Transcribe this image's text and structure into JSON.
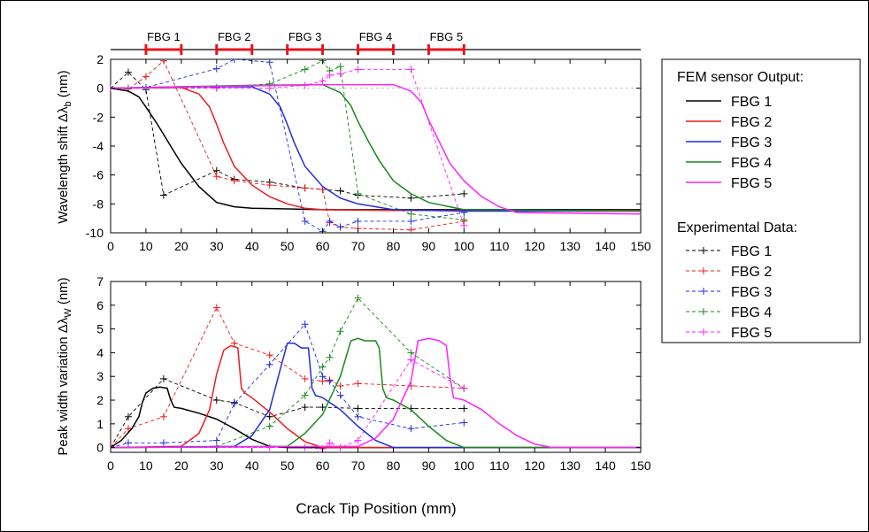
{
  "labels": {
    "top_ylabel": "Wavelength shift Δλ",
    "top_ylabel_sub": "b",
    "top_ylabel_unit": " (nm)",
    "bottom_ylabel": "Peak width variation Δλ",
    "bottom_ylabel_sub": "W",
    "bottom_ylabel_unit": " (nm)",
    "xlabel": "Crack Tip Position (mm)"
  },
  "sensor_bar": [
    {
      "label": "FBG 1",
      "from": 10,
      "to": 20
    },
    {
      "label": "FBG 2",
      "from": 30,
      "to": 40
    },
    {
      "label": "FBG 3",
      "from": 50,
      "to": 60
    },
    {
      "label": "FBG 4",
      "from": 70,
      "to": 80
    },
    {
      "label": "FBG 5",
      "from": 90,
      "to": 100
    }
  ],
  "legend": {
    "fem_title": "FEM sensor Output:",
    "exp_title": "Experimental Data:",
    "fem_items": [
      "FBG 1",
      "FBG 2",
      "FBG 3",
      "FBG 4",
      "FBG 5"
    ],
    "exp_items": [
      "FBG 1",
      "FBG 2",
      "FBG 3",
      "FBG 4",
      "FBG 5"
    ]
  },
  "colors": {
    "FBG 1": "#000000",
    "FBG 2": "#ee1c1c",
    "FBG 3": "#1f2ee0",
    "FBG 4": "#1a8a1a",
    "FBG 5": "#ff22ff",
    "sensor_bar": "#e8141c"
  },
  "chart_data": [
    {
      "type": "line",
      "ylabel": "Wavelength shift Δλb (nm)",
      "xlim": [
        0,
        150
      ],
      "ylim": [
        -10,
        2
      ],
      "xticks": [
        0,
        10,
        20,
        30,
        40,
        50,
        60,
        70,
        80,
        90,
        100,
        110,
        120,
        130,
        140,
        150
      ],
      "yticks": [
        2,
        0,
        -2,
        -4,
        -6,
        -8,
        -10
      ],
      "series": [
        {
          "name": "FBG 1",
          "kind": "fem",
          "x": [
            0,
            5,
            8,
            10,
            13,
            16,
            20,
            25,
            30,
            35,
            40,
            50,
            60,
            80,
            100,
            150
          ],
          "y": [
            0,
            -0.2,
            -0.6,
            -1.3,
            -2.4,
            -3.6,
            -5.2,
            -6.8,
            -7.9,
            -8.2,
            -8.3,
            -8.35,
            -8.4,
            -8.4,
            -8.4,
            -8.4
          ]
        },
        {
          "name": "FBG 2",
          "kind": "fem",
          "x": [
            0,
            20,
            25,
            28,
            30,
            32,
            35,
            40,
            45,
            50,
            55,
            60,
            80,
            100,
            150
          ],
          "y": [
            0,
            0.05,
            -0.4,
            -1.3,
            -2.5,
            -3.8,
            -5.4,
            -6.7,
            -7.5,
            -8.0,
            -8.3,
            -8.4,
            -8.45,
            -8.45,
            -8.45
          ]
        },
        {
          "name": "FBG 3",
          "kind": "fem",
          "x": [
            0,
            20,
            40,
            45,
            48,
            50,
            52,
            55,
            60,
            65,
            70,
            80,
            100,
            150
          ],
          "y": [
            0,
            0.1,
            0.1,
            -0.4,
            -1.3,
            -2.5,
            -3.8,
            -5.4,
            -6.8,
            -7.6,
            -8.0,
            -8.4,
            -8.5,
            -8.5
          ]
        },
        {
          "name": "FBG 4",
          "kind": "fem",
          "x": [
            0,
            40,
            60,
            65,
            68,
            70,
            73,
            76,
            80,
            85,
            90,
            100,
            150
          ],
          "y": [
            0,
            0.2,
            0.25,
            -0.3,
            -1.2,
            -2.3,
            -3.7,
            -5.0,
            -6.4,
            -7.3,
            -7.9,
            -8.4,
            -8.5
          ]
        },
        {
          "name": "FBG 5",
          "kind": "fem",
          "x": [
            0,
            60,
            80,
            85,
            88,
            90,
            93,
            96,
            100,
            105,
            110,
            115,
            150
          ],
          "y": [
            0,
            0.25,
            0.25,
            -0.2,
            -1.0,
            -2.2,
            -3.7,
            -5.2,
            -6.4,
            -7.5,
            -8.2,
            -8.6,
            -8.7
          ]
        },
        {
          "name": "FBG 1",
          "kind": "exp",
          "x": [
            0,
            5,
            10,
            15,
            30,
            35,
            45,
            55,
            60,
            65,
            70,
            85,
            100
          ],
          "y": [
            0,
            1.1,
            -0.1,
            -7.4,
            -5.7,
            -6.3,
            -6.5,
            -6.9,
            -7.0,
            -7.1,
            -7.4,
            -7.6,
            -7.3
          ]
        },
        {
          "name": "FBG 2",
          "kind": "exp",
          "x": [
            0,
            5,
            10,
            15,
            30,
            35,
            45,
            55,
            60,
            62,
            65,
            70,
            85,
            100
          ],
          "y": [
            0,
            -0.05,
            0.8,
            1.9,
            -6.1,
            -6.4,
            -6.7,
            -6.9,
            -7.0,
            -9.3,
            -9.6,
            -9.7,
            -9.8,
            -9.2
          ]
        },
        {
          "name": "FBG 3",
          "kind": "exp",
          "x": [
            0,
            5,
            10,
            30,
            35,
            45,
            55,
            60,
            62,
            65,
            70,
            85,
            100
          ],
          "y": [
            0,
            0.0,
            0.05,
            1.35,
            2.0,
            1.8,
            -9.2,
            -9.9,
            -9.2,
            -9.6,
            -9.2,
            -9.2,
            -8.6
          ]
        },
        {
          "name": "FBG 4",
          "kind": "exp",
          "x": [
            0,
            5,
            30,
            45,
            55,
            60,
            62,
            65,
            70,
            85,
            100
          ],
          "y": [
            0,
            0.0,
            0.05,
            0.3,
            1.3,
            1.9,
            1.2,
            1.5,
            -7.3,
            -8.7,
            -9.1
          ]
        },
        {
          "name": "FBG 5",
          "kind": "exp",
          "x": [
            0,
            30,
            45,
            55,
            60,
            62,
            65,
            70,
            85,
            100
          ],
          "y": [
            0,
            0.0,
            0.0,
            0.2,
            0.5,
            0.9,
            1.0,
            1.3,
            1.3,
            -9.5
          ]
        }
      ]
    },
    {
      "type": "line",
      "xlabel": "Crack Tip Position (mm)",
      "ylabel": "Peak width variation ΔλW (nm)",
      "xlim": [
        0,
        150
      ],
      "ylim": [
        -0.2,
        7
      ],
      "xticks": [
        0,
        10,
        20,
        30,
        40,
        50,
        60,
        70,
        80,
        90,
        100,
        110,
        120,
        130,
        140,
        150
      ],
      "yticks": [
        0,
        1,
        2,
        3,
        4,
        5,
        6,
        7
      ],
      "series": [
        {
          "name": "FBG 1",
          "kind": "fem",
          "x": [
            0,
            3,
            6,
            8,
            9,
            10,
            12,
            14,
            16,
            17,
            18,
            20,
            25,
            30,
            35,
            40,
            45,
            50,
            150
          ],
          "y": [
            0,
            0.3,
            0.8,
            1.3,
            1.9,
            2.3,
            2.5,
            2.55,
            2.5,
            2.0,
            1.7,
            1.65,
            1.45,
            1.2,
            0.8,
            0.35,
            0.05,
            0,
            0
          ]
        },
        {
          "name": "FBG 2",
          "kind": "fem",
          "x": [
            0,
            20,
            25,
            28,
            30,
            32,
            34,
            36,
            37,
            38,
            40,
            45,
            50,
            55,
            60,
            150
          ],
          "y": [
            0,
            0.05,
            0.6,
            1.6,
            3.1,
            4.1,
            4.3,
            4.2,
            2.5,
            2.3,
            2.1,
            1.5,
            0.8,
            0.25,
            0,
            0
          ]
        },
        {
          "name": "FBG 3",
          "kind": "fem",
          "x": [
            0,
            35,
            40,
            45,
            48,
            50,
            52,
            54,
            56,
            57,
            58,
            60,
            65,
            70,
            75,
            80,
            150
          ],
          "y": [
            0,
            0.05,
            0.5,
            1.6,
            3.3,
            4.4,
            4.4,
            4.2,
            4.2,
            2.5,
            2.2,
            2.1,
            1.6,
            0.9,
            0.3,
            0,
            0
          ]
        },
        {
          "name": "FBG 4",
          "kind": "fem",
          "x": [
            0,
            50,
            55,
            60,
            65,
            68,
            70,
            72,
            75,
            76,
            77,
            78,
            80,
            85,
            90,
            95,
            100,
            150
          ],
          "y": [
            0,
            0.05,
            0.6,
            1.4,
            3.0,
            4.5,
            4.6,
            4.5,
            4.5,
            4.2,
            2.5,
            2.1,
            2.0,
            1.6,
            0.9,
            0.3,
            0,
            0
          ]
        },
        {
          "name": "FBG 5",
          "kind": "fem",
          "x": [
            0,
            70,
            75,
            80,
            85,
            87,
            90,
            93,
            95,
            96,
            97,
            100,
            105,
            110,
            115,
            120,
            125,
            150
          ],
          "y": [
            0,
            0.05,
            0.4,
            1.2,
            2.8,
            4.5,
            4.6,
            4.5,
            4.3,
            3.0,
            2.1,
            2.0,
            1.6,
            1.0,
            0.5,
            0.15,
            0,
            0
          ]
        },
        {
          "name": "FBG 1",
          "kind": "exp",
          "x": [
            0,
            5,
            15,
            30,
            35,
            45,
            55,
            60,
            70,
            85,
            100
          ],
          "y": [
            0,
            1.3,
            2.9,
            2.0,
            1.9,
            1.3,
            1.7,
            1.7,
            1.65,
            1.65,
            1.65
          ]
        },
        {
          "name": "FBG 2",
          "kind": "exp",
          "x": [
            0,
            5,
            15,
            30,
            35,
            45,
            55,
            60,
            62,
            65,
            70,
            85,
            100
          ],
          "y": [
            0,
            0.8,
            1.3,
            5.9,
            4.4,
            3.9,
            2.9,
            2.8,
            2.85,
            2.6,
            2.7,
            2.6,
            2.5
          ]
        },
        {
          "name": "FBG 3",
          "kind": "exp",
          "x": [
            0,
            5,
            15,
            30,
            35,
            45,
            55,
            60,
            62,
            65,
            70,
            85,
            100
          ],
          "y": [
            0,
            0.2,
            0.2,
            0.3,
            1.85,
            3.5,
            5.2,
            3.0,
            2.8,
            2.2,
            1.3,
            0.8,
            1.05
          ]
        },
        {
          "name": "FBG 4",
          "kind": "exp",
          "x": [
            0,
            30,
            45,
            55,
            60,
            62,
            65,
            70,
            85,
            100
          ],
          "y": [
            0,
            0.05,
            0.9,
            2.2,
            3.4,
            3.8,
            4.9,
            6.3,
            4.0,
            2.5
          ]
        },
        {
          "name": "FBG 5",
          "kind": "exp",
          "x": [
            0,
            30,
            45,
            55,
            60,
            62,
            65,
            70,
            85,
            100
          ],
          "y": [
            0,
            0.0,
            0.0,
            0.0,
            -0.05,
            0.2,
            0.0,
            0.3,
            3.7,
            2.5
          ]
        }
      ]
    }
  ]
}
